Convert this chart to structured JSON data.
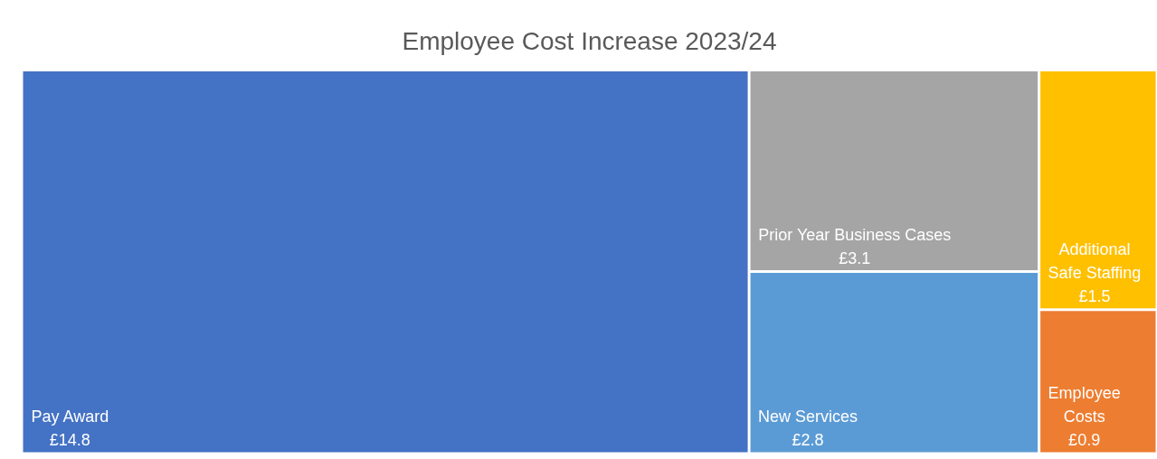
{
  "chart_data": {
    "type": "other",
    "title": "Employee Cost Increase 2023/24",
    "categories": [
      "Pay Award",
      "Prior Year Business Cases",
      "New Services",
      "Additional Safe Staffing",
      "Employee Costs"
    ],
    "values": [
      14.8,
      3.1,
      2.8,
      1.5,
      0.9
    ],
    "value_labels": [
      "£14.8",
      "£3.1",
      "£2.8",
      "£1.5",
      "£0.9"
    ],
    "colors": [
      "#4472c4",
      "#a5a5a5",
      "#5b9bd5",
      "#ffc000",
      "#ed7d31"
    ]
  }
}
